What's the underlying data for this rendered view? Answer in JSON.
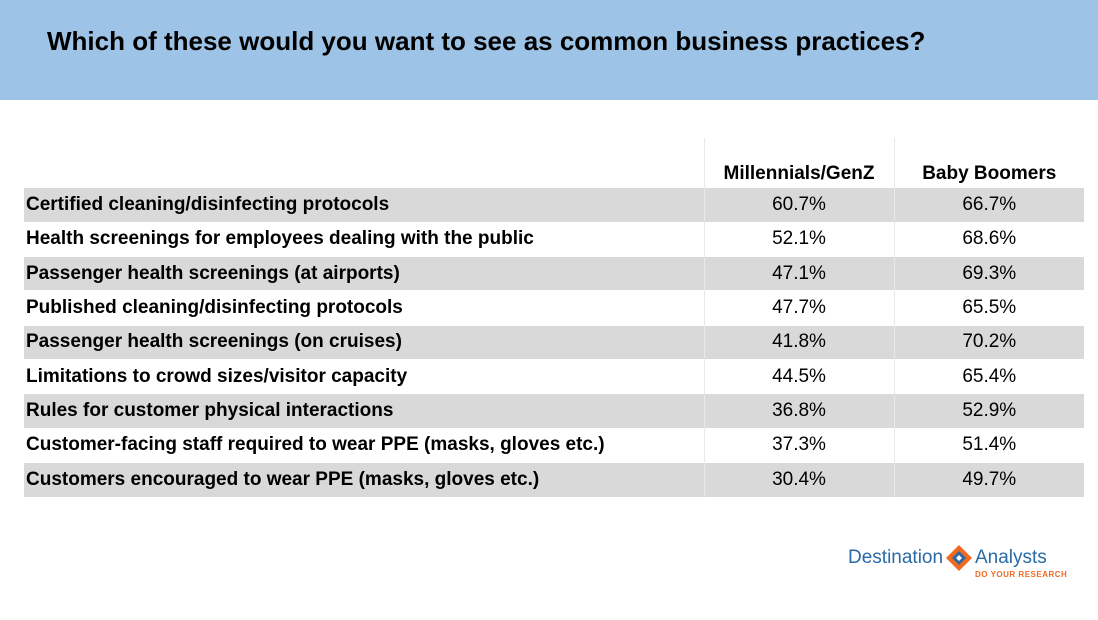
{
  "header": {
    "title": "Which of these would you want to see as common business practices?"
  },
  "chart_data": {
    "type": "table",
    "title": "Which of these would you want to see as common business practices?",
    "columns": [
      "",
      "Millennials/GenZ",
      "Baby Boomers"
    ],
    "rows": [
      {
        "label": "Certified cleaning/disinfecting protocols",
        "millennials_genz": "60.7%",
        "baby_boomers": "66.7%"
      },
      {
        "label": "Health screenings for employees dealing with the public",
        "millennials_genz": "52.1%",
        "baby_boomers": "68.6%"
      },
      {
        "label": "Passenger health screenings (at airports)",
        "millennials_genz": "47.1%",
        "baby_boomers": "69.3%"
      },
      {
        "label": "Published cleaning/disinfecting protocols",
        "millennials_genz": "47.7%",
        "baby_boomers": "65.5%"
      },
      {
        "label": "Passenger health screenings (on cruises)",
        "millennials_genz": "41.8%",
        "baby_boomers": "70.2%"
      },
      {
        "label": "Limitations to crowd sizes/visitor capacity",
        "millennials_genz": "44.5%",
        "baby_boomers": "65.4%"
      },
      {
        "label": "Rules for customer physical interactions",
        "millennials_genz": "36.8%",
        "baby_boomers": "52.9%"
      },
      {
        "label": "Customer-facing staff required to wear PPE (masks, gloves etc.)",
        "millennials_genz": "37.3%",
        "baby_boomers": "51.4%"
      },
      {
        "label": "Customers encouraged to wear PPE (masks, gloves etc.)",
        "millennials_genz": "30.4%",
        "baby_boomers": "49.7%"
      }
    ]
  },
  "logo": {
    "left_text": "Destination",
    "right_text": "Analysts",
    "tagline": "DO YOUR RESEARCH"
  },
  "colors": {
    "header_bg": "#9dc3e6",
    "stripe": "#d9d9d9",
    "logo_blue": "#2a6aa6",
    "logo_orange": "#f26a21"
  }
}
